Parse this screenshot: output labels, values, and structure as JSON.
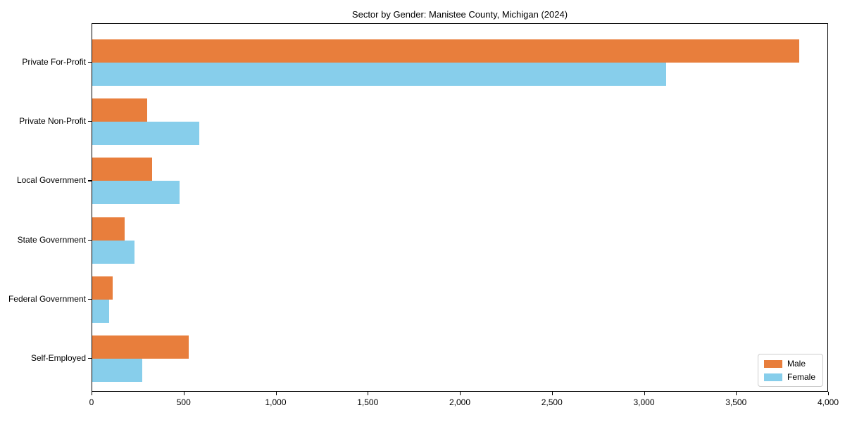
{
  "chart_data": {
    "type": "bar",
    "orientation": "horizontal",
    "title": "Sector by Gender: Manistee County, Michigan (2024)",
    "categories": [
      "Private For-Profit",
      "Private Non-Profit",
      "Local Government",
      "State Government",
      "Federal Government",
      "Self-Employed"
    ],
    "series": [
      {
        "name": "Male",
        "color": "#e87e3c",
        "values": [
          3840,
          300,
          325,
          175,
          110,
          525
        ]
      },
      {
        "name": "Female",
        "color": "#87ceeb",
        "values": [
          3115,
          580,
          475,
          230,
          90,
          270
        ]
      }
    ],
    "xlabel": "",
    "ylabel": "",
    "xlim": [
      0,
      4000
    ],
    "xticks": [
      0,
      500,
      1000,
      1500,
      2000,
      2500,
      3000,
      3500,
      4000
    ],
    "xtick_labels": [
      "0",
      "500",
      "1,000",
      "1,500",
      "2,000",
      "2,500",
      "3,000",
      "3,500",
      "4,000"
    ],
    "grid": false,
    "legend_position": "lower right",
    "frame_color": "#000000",
    "background_color": "#ffffff"
  }
}
